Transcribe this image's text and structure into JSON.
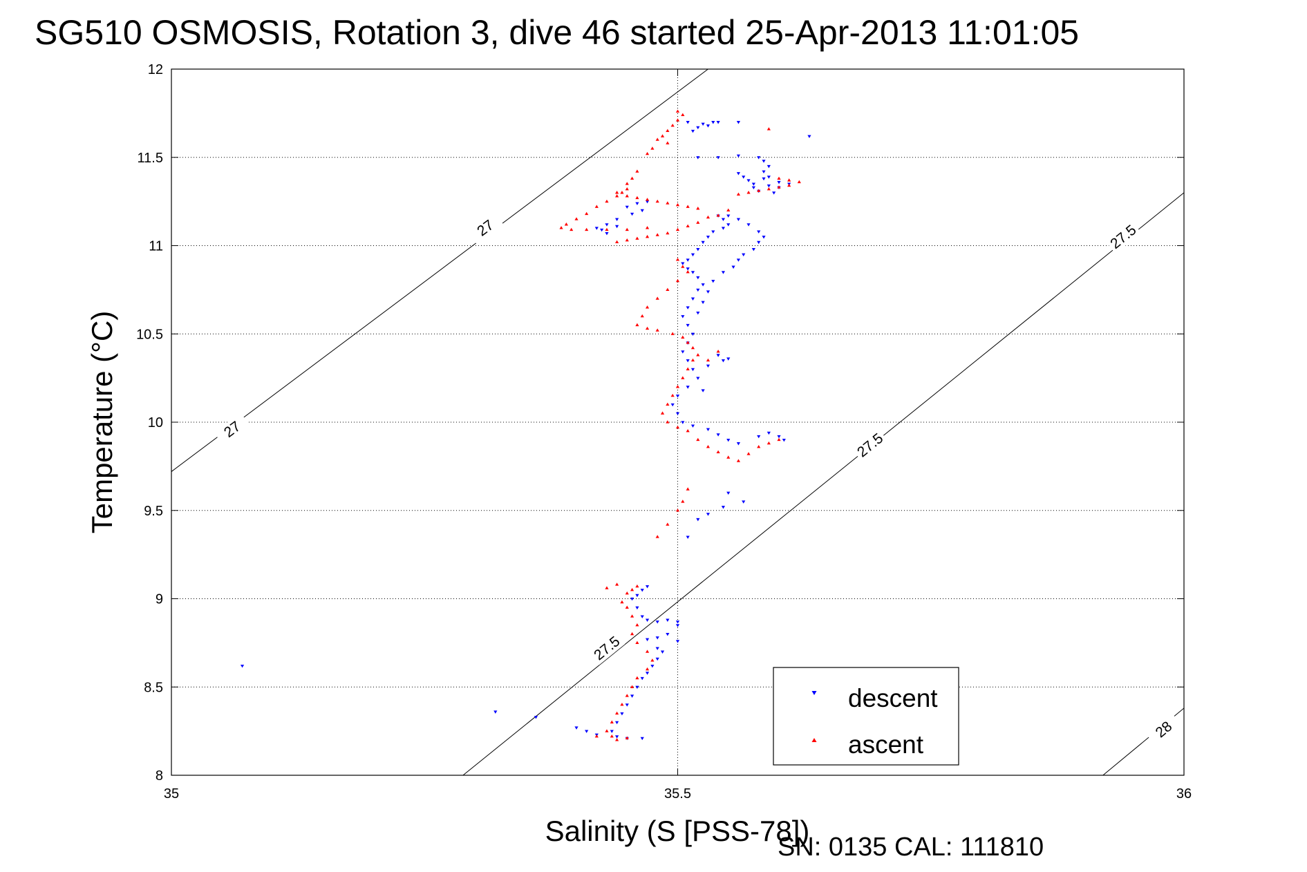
{
  "chart_data": {
    "type": "scatter",
    "title": "SG510 OSMOSIS, Rotation 3, dive 46 started 25-Apr-2013 11:01:05",
    "xlabel": "Salinity (S [PSS-78])",
    "ylabel": "Temperature (°C)",
    "xlim": [
      35,
      36
    ],
    "ylim": [
      8,
      12
    ],
    "x_ticks": [
      "35",
      "35.5",
      "36"
    ],
    "y_ticks": [
      "8",
      "8.5",
      "9",
      "9.5",
      "10",
      "10.5",
      "11",
      "11.5",
      "12"
    ],
    "grid": true,
    "legend_position": "bottom-right",
    "annotation": "SN: 0135  CAL: 111810",
    "density_contours": [
      {
        "label": "27",
        "points": [
          [
            35.0,
            9.72
          ],
          [
            35.53,
            12.0
          ]
        ],
        "label_at": [
          [
            35.06,
            9.96
          ],
          [
            35.31,
            11.1
          ]
        ]
      },
      {
        "label": "27.5",
        "points": [
          [
            35.288,
            8.0
          ],
          [
            36.0,
            11.3
          ]
        ],
        "label_at": [
          [
            35.43,
            8.72
          ],
          [
            35.69,
            9.87
          ],
          [
            35.94,
            11.05
          ]
        ]
      },
      {
        "label": "28",
        "points": [
          [
            35.92,
            8.0
          ],
          [
            36.0,
            8.38
          ]
        ],
        "label_at": [
          [
            35.98,
            8.26
          ]
        ]
      }
    ],
    "series": [
      {
        "name": "descent",
        "color": "#0000ff",
        "marker": "triangle-down",
        "points": [
          [
            35.51,
            11.7
          ],
          [
            35.525,
            11.69
          ],
          [
            35.535,
            11.7
          ],
          [
            35.52,
            11.67
          ],
          [
            35.515,
            11.65
          ],
          [
            35.53,
            11.68
          ],
          [
            35.54,
            11.7
          ],
          [
            35.56,
            11.7
          ],
          [
            35.63,
            11.62
          ],
          [
            35.52,
            11.5
          ],
          [
            35.54,
            11.5
          ],
          [
            35.56,
            11.51
          ],
          [
            35.58,
            11.5
          ],
          [
            35.585,
            11.48
          ],
          [
            35.59,
            11.45
          ],
          [
            35.585,
            11.42
          ],
          [
            35.59,
            11.39
          ],
          [
            35.6,
            11.36
          ],
          [
            35.59,
            11.34
          ],
          [
            35.575,
            11.33
          ],
          [
            35.58,
            11.31
          ],
          [
            35.595,
            11.3
          ],
          [
            35.56,
            11.41
          ],
          [
            35.565,
            11.39
          ],
          [
            35.57,
            11.37
          ],
          [
            35.575,
            11.35
          ],
          [
            35.585,
            11.38
          ],
          [
            35.6,
            11.33
          ],
          [
            35.61,
            11.35
          ],
          [
            35.45,
            11.22
          ],
          [
            35.46,
            11.24
          ],
          [
            35.47,
            11.25
          ],
          [
            35.465,
            11.2
          ],
          [
            35.455,
            11.18
          ],
          [
            35.44,
            11.15
          ],
          [
            35.43,
            11.12
          ],
          [
            35.42,
            11.1
          ],
          [
            35.425,
            11.09
          ],
          [
            35.44,
            11.11
          ],
          [
            35.43,
            11.07
          ],
          [
            35.54,
            11.17
          ],
          [
            35.545,
            11.15
          ],
          [
            35.55,
            11.12
          ],
          [
            35.545,
            11.1
          ],
          [
            35.535,
            11.08
          ],
          [
            35.53,
            11.05
          ],
          [
            35.525,
            11.02
          ],
          [
            35.52,
            10.98
          ],
          [
            35.515,
            10.95
          ],
          [
            35.51,
            10.92
          ],
          [
            35.505,
            10.9
          ],
          [
            35.51,
            10.87
          ],
          [
            35.515,
            10.85
          ],
          [
            35.52,
            10.82
          ],
          [
            35.525,
            10.78
          ],
          [
            35.52,
            10.75
          ],
          [
            35.515,
            10.7
          ],
          [
            35.51,
            10.65
          ],
          [
            35.505,
            10.6
          ],
          [
            35.51,
            10.55
          ],
          [
            35.515,
            10.5
          ],
          [
            35.55,
            11.17
          ],
          [
            35.56,
            11.15
          ],
          [
            35.57,
            11.12
          ],
          [
            35.58,
            11.08
          ],
          [
            35.585,
            11.05
          ],
          [
            35.58,
            11.02
          ],
          [
            35.575,
            10.98
          ],
          [
            35.565,
            10.95
          ],
          [
            35.56,
            10.92
          ],
          [
            35.555,
            10.88
          ],
          [
            35.545,
            10.85
          ],
          [
            35.535,
            10.8
          ],
          [
            35.53,
            10.74
          ],
          [
            35.525,
            10.68
          ],
          [
            35.52,
            10.62
          ],
          [
            35.51,
            10.45
          ],
          [
            35.505,
            10.4
          ],
          [
            35.51,
            10.35
          ],
          [
            35.515,
            10.3
          ],
          [
            35.52,
            10.25
          ],
          [
            35.51,
            10.2
          ],
          [
            35.5,
            10.15
          ],
          [
            35.495,
            10.1
          ],
          [
            35.5,
            10.05
          ],
          [
            35.505,
            10.0
          ],
          [
            35.515,
            9.98
          ],
          [
            35.53,
            9.96
          ],
          [
            35.54,
            9.93
          ],
          [
            35.55,
            9.9
          ],
          [
            35.56,
            9.88
          ],
          [
            35.58,
            9.92
          ],
          [
            35.59,
            9.94
          ],
          [
            35.6,
            9.92
          ],
          [
            35.605,
            9.9
          ],
          [
            35.54,
            10.38
          ],
          [
            35.545,
            10.35
          ],
          [
            35.55,
            10.36
          ],
          [
            35.53,
            10.32
          ],
          [
            35.525,
            10.18
          ],
          [
            35.55,
            9.6
          ],
          [
            35.565,
            9.55
          ],
          [
            35.545,
            9.52
          ],
          [
            35.53,
            9.48
          ],
          [
            35.52,
            9.45
          ],
          [
            35.51,
            9.35
          ],
          [
            35.47,
            9.07
          ],
          [
            35.465,
            9.05
          ],
          [
            35.46,
            9.02
          ],
          [
            35.455,
            9.0
          ],
          [
            35.46,
            8.95
          ],
          [
            35.465,
            8.9
          ],
          [
            35.47,
            8.88
          ],
          [
            35.48,
            8.87
          ],
          [
            35.49,
            8.88
          ],
          [
            35.5,
            8.87
          ],
          [
            35.5,
            8.85
          ],
          [
            35.49,
            8.8
          ],
          [
            35.48,
            8.78
          ],
          [
            35.47,
            8.77
          ],
          [
            35.5,
            8.76
          ],
          [
            35.48,
            8.72
          ],
          [
            35.485,
            8.7
          ],
          [
            35.48,
            8.66
          ],
          [
            35.475,
            8.62
          ],
          [
            35.47,
            8.58
          ],
          [
            35.465,
            8.55
          ],
          [
            35.46,
            8.5
          ],
          [
            35.455,
            8.45
          ],
          [
            35.45,
            8.4
          ],
          [
            35.445,
            8.35
          ],
          [
            35.44,
            8.3
          ],
          [
            35.435,
            8.25
          ],
          [
            35.44,
            8.22
          ],
          [
            35.45,
            8.21
          ],
          [
            35.465,
            8.21
          ],
          [
            35.42,
            8.23
          ],
          [
            35.41,
            8.25
          ],
          [
            35.4,
            8.27
          ],
          [
            35.07,
            8.62
          ],
          [
            35.32,
            8.36
          ],
          [
            35.36,
            8.33
          ]
        ]
      },
      {
        "name": "ascent",
        "color": "#ff0000",
        "marker": "triangle-up",
        "points": [
          [
            35.5,
            11.76
          ],
          [
            35.505,
            11.74
          ],
          [
            35.5,
            11.71
          ],
          [
            35.495,
            11.68
          ],
          [
            35.49,
            11.65
          ],
          [
            35.485,
            11.62
          ],
          [
            35.48,
            11.6
          ],
          [
            35.475,
            11.55
          ],
          [
            35.47,
            11.52
          ],
          [
            35.49,
            11.58
          ],
          [
            35.59,
            11.66
          ],
          [
            35.6,
            11.38
          ],
          [
            35.61,
            11.37
          ],
          [
            35.62,
            11.36
          ],
          [
            35.61,
            11.34
          ],
          [
            35.6,
            11.33
          ],
          [
            35.59,
            11.32
          ],
          [
            35.58,
            11.31
          ],
          [
            35.57,
            11.3
          ],
          [
            35.56,
            11.29
          ],
          [
            35.46,
            11.42
          ],
          [
            35.455,
            11.38
          ],
          [
            35.45,
            11.35
          ],
          [
            35.445,
            11.3
          ],
          [
            35.44,
            11.28
          ],
          [
            35.43,
            11.25
          ],
          [
            35.42,
            11.22
          ],
          [
            35.41,
            11.18
          ],
          [
            35.4,
            11.15
          ],
          [
            35.39,
            11.12
          ],
          [
            35.385,
            11.1
          ],
          [
            35.395,
            11.09
          ],
          [
            35.41,
            11.09
          ],
          [
            35.43,
            11.09
          ],
          [
            35.45,
            11.09
          ],
          [
            35.47,
            11.1
          ],
          [
            35.45,
            11.28
          ],
          [
            35.46,
            11.27
          ],
          [
            35.47,
            11.26
          ],
          [
            35.48,
            11.25
          ],
          [
            35.49,
            11.24
          ],
          [
            35.5,
            11.23
          ],
          [
            35.51,
            11.22
          ],
          [
            35.52,
            11.21
          ],
          [
            35.44,
            11.3
          ],
          [
            35.45,
            11.32
          ],
          [
            35.44,
            11.02
          ],
          [
            35.45,
            11.03
          ],
          [
            35.46,
            11.04
          ],
          [
            35.47,
            11.05
          ],
          [
            35.48,
            11.06
          ],
          [
            35.49,
            11.07
          ],
          [
            35.5,
            11.09
          ],
          [
            35.51,
            11.11
          ],
          [
            35.52,
            11.13
          ],
          [
            35.53,
            11.16
          ],
          [
            35.54,
            11.17
          ],
          [
            35.55,
            11.2
          ],
          [
            35.5,
            10.92
          ],
          [
            35.505,
            10.88
          ],
          [
            35.51,
            10.85
          ],
          [
            35.5,
            10.8
          ],
          [
            35.49,
            10.75
          ],
          [
            35.48,
            10.7
          ],
          [
            35.47,
            10.65
          ],
          [
            35.465,
            10.6
          ],
          [
            35.46,
            10.55
          ],
          [
            35.47,
            10.53
          ],
          [
            35.48,
            10.52
          ],
          [
            35.495,
            10.5
          ],
          [
            35.505,
            10.48
          ],
          [
            35.51,
            10.45
          ],
          [
            35.515,
            10.42
          ],
          [
            35.52,
            10.38
          ],
          [
            35.515,
            10.35
          ],
          [
            35.51,
            10.3
          ],
          [
            35.505,
            10.25
          ],
          [
            35.5,
            10.2
          ],
          [
            35.495,
            10.15
          ],
          [
            35.49,
            10.1
          ],
          [
            35.485,
            10.05
          ],
          [
            35.49,
            10.0
          ],
          [
            35.5,
            9.97
          ],
          [
            35.51,
            9.95
          ],
          [
            35.52,
            9.9
          ],
          [
            35.53,
            9.86
          ],
          [
            35.54,
            9.83
          ],
          [
            35.55,
            9.8
          ],
          [
            35.56,
            9.78
          ],
          [
            35.57,
            9.82
          ],
          [
            35.58,
            9.86
          ],
          [
            35.59,
            9.88
          ],
          [
            35.6,
            9.9
          ],
          [
            35.53,
            10.35
          ],
          [
            35.54,
            10.4
          ],
          [
            35.51,
            9.62
          ],
          [
            35.505,
            9.55
          ],
          [
            35.5,
            9.5
          ],
          [
            35.49,
            9.42
          ],
          [
            35.48,
            9.35
          ],
          [
            35.46,
            9.07
          ],
          [
            35.455,
            9.05
          ],
          [
            35.45,
            9.03
          ],
          [
            35.44,
            9.08
          ],
          [
            35.43,
            9.06
          ],
          [
            35.445,
            8.98
          ],
          [
            35.45,
            8.95
          ],
          [
            35.455,
            8.9
          ],
          [
            35.46,
            8.85
          ],
          [
            35.455,
            8.8
          ],
          [
            35.46,
            8.75
          ],
          [
            35.47,
            8.7
          ],
          [
            35.475,
            8.65
          ],
          [
            35.47,
            8.6
          ],
          [
            35.46,
            8.55
          ],
          [
            35.455,
            8.5
          ],
          [
            35.45,
            8.45
          ],
          [
            35.445,
            8.4
          ],
          [
            35.44,
            8.35
          ],
          [
            35.435,
            8.3
          ],
          [
            35.43,
            8.25
          ],
          [
            35.435,
            8.22
          ],
          [
            35.44,
            8.2
          ],
          [
            35.45,
            8.21
          ],
          [
            35.42,
            8.22
          ]
        ]
      }
    ]
  },
  "footer": {
    "serial_label": "SN: 0135  CAL: 111810"
  }
}
